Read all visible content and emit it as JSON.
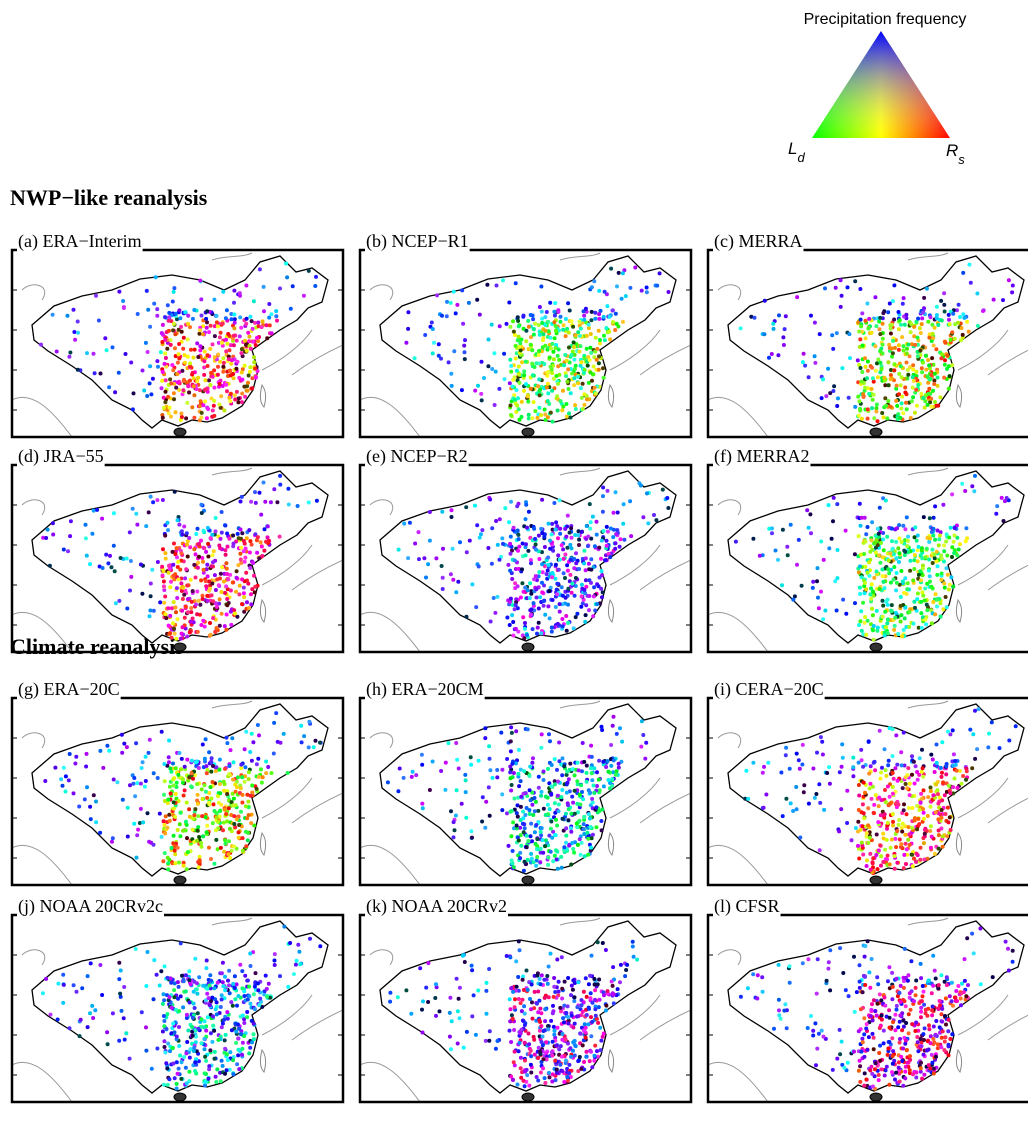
{
  "legend": {
    "title": "Precipitation frequency",
    "left": "L",
    "left_sub": "d",
    "right": "R",
    "right_sub": "s"
  },
  "sections": [
    {
      "title": "NWP−like reanalysis",
      "panels": [
        "(a) ERA−Interim",
        "(b) NCEP−R1",
        "(c) MERRA",
        "(d) JRA−55",
        "(e) NCEP−R2",
        "(f) MERRA2"
      ]
    },
    {
      "title": "Climate reanalysis",
      "panels": [
        "(g) ERA−20C",
        "(h) ERA−20CM",
        "(i) CERA−20C",
        "(j) NOAA 20CRv2c",
        "(k) NOAA 20CRv2",
        "(l) CFSR"
      ]
    }
  ]
}
